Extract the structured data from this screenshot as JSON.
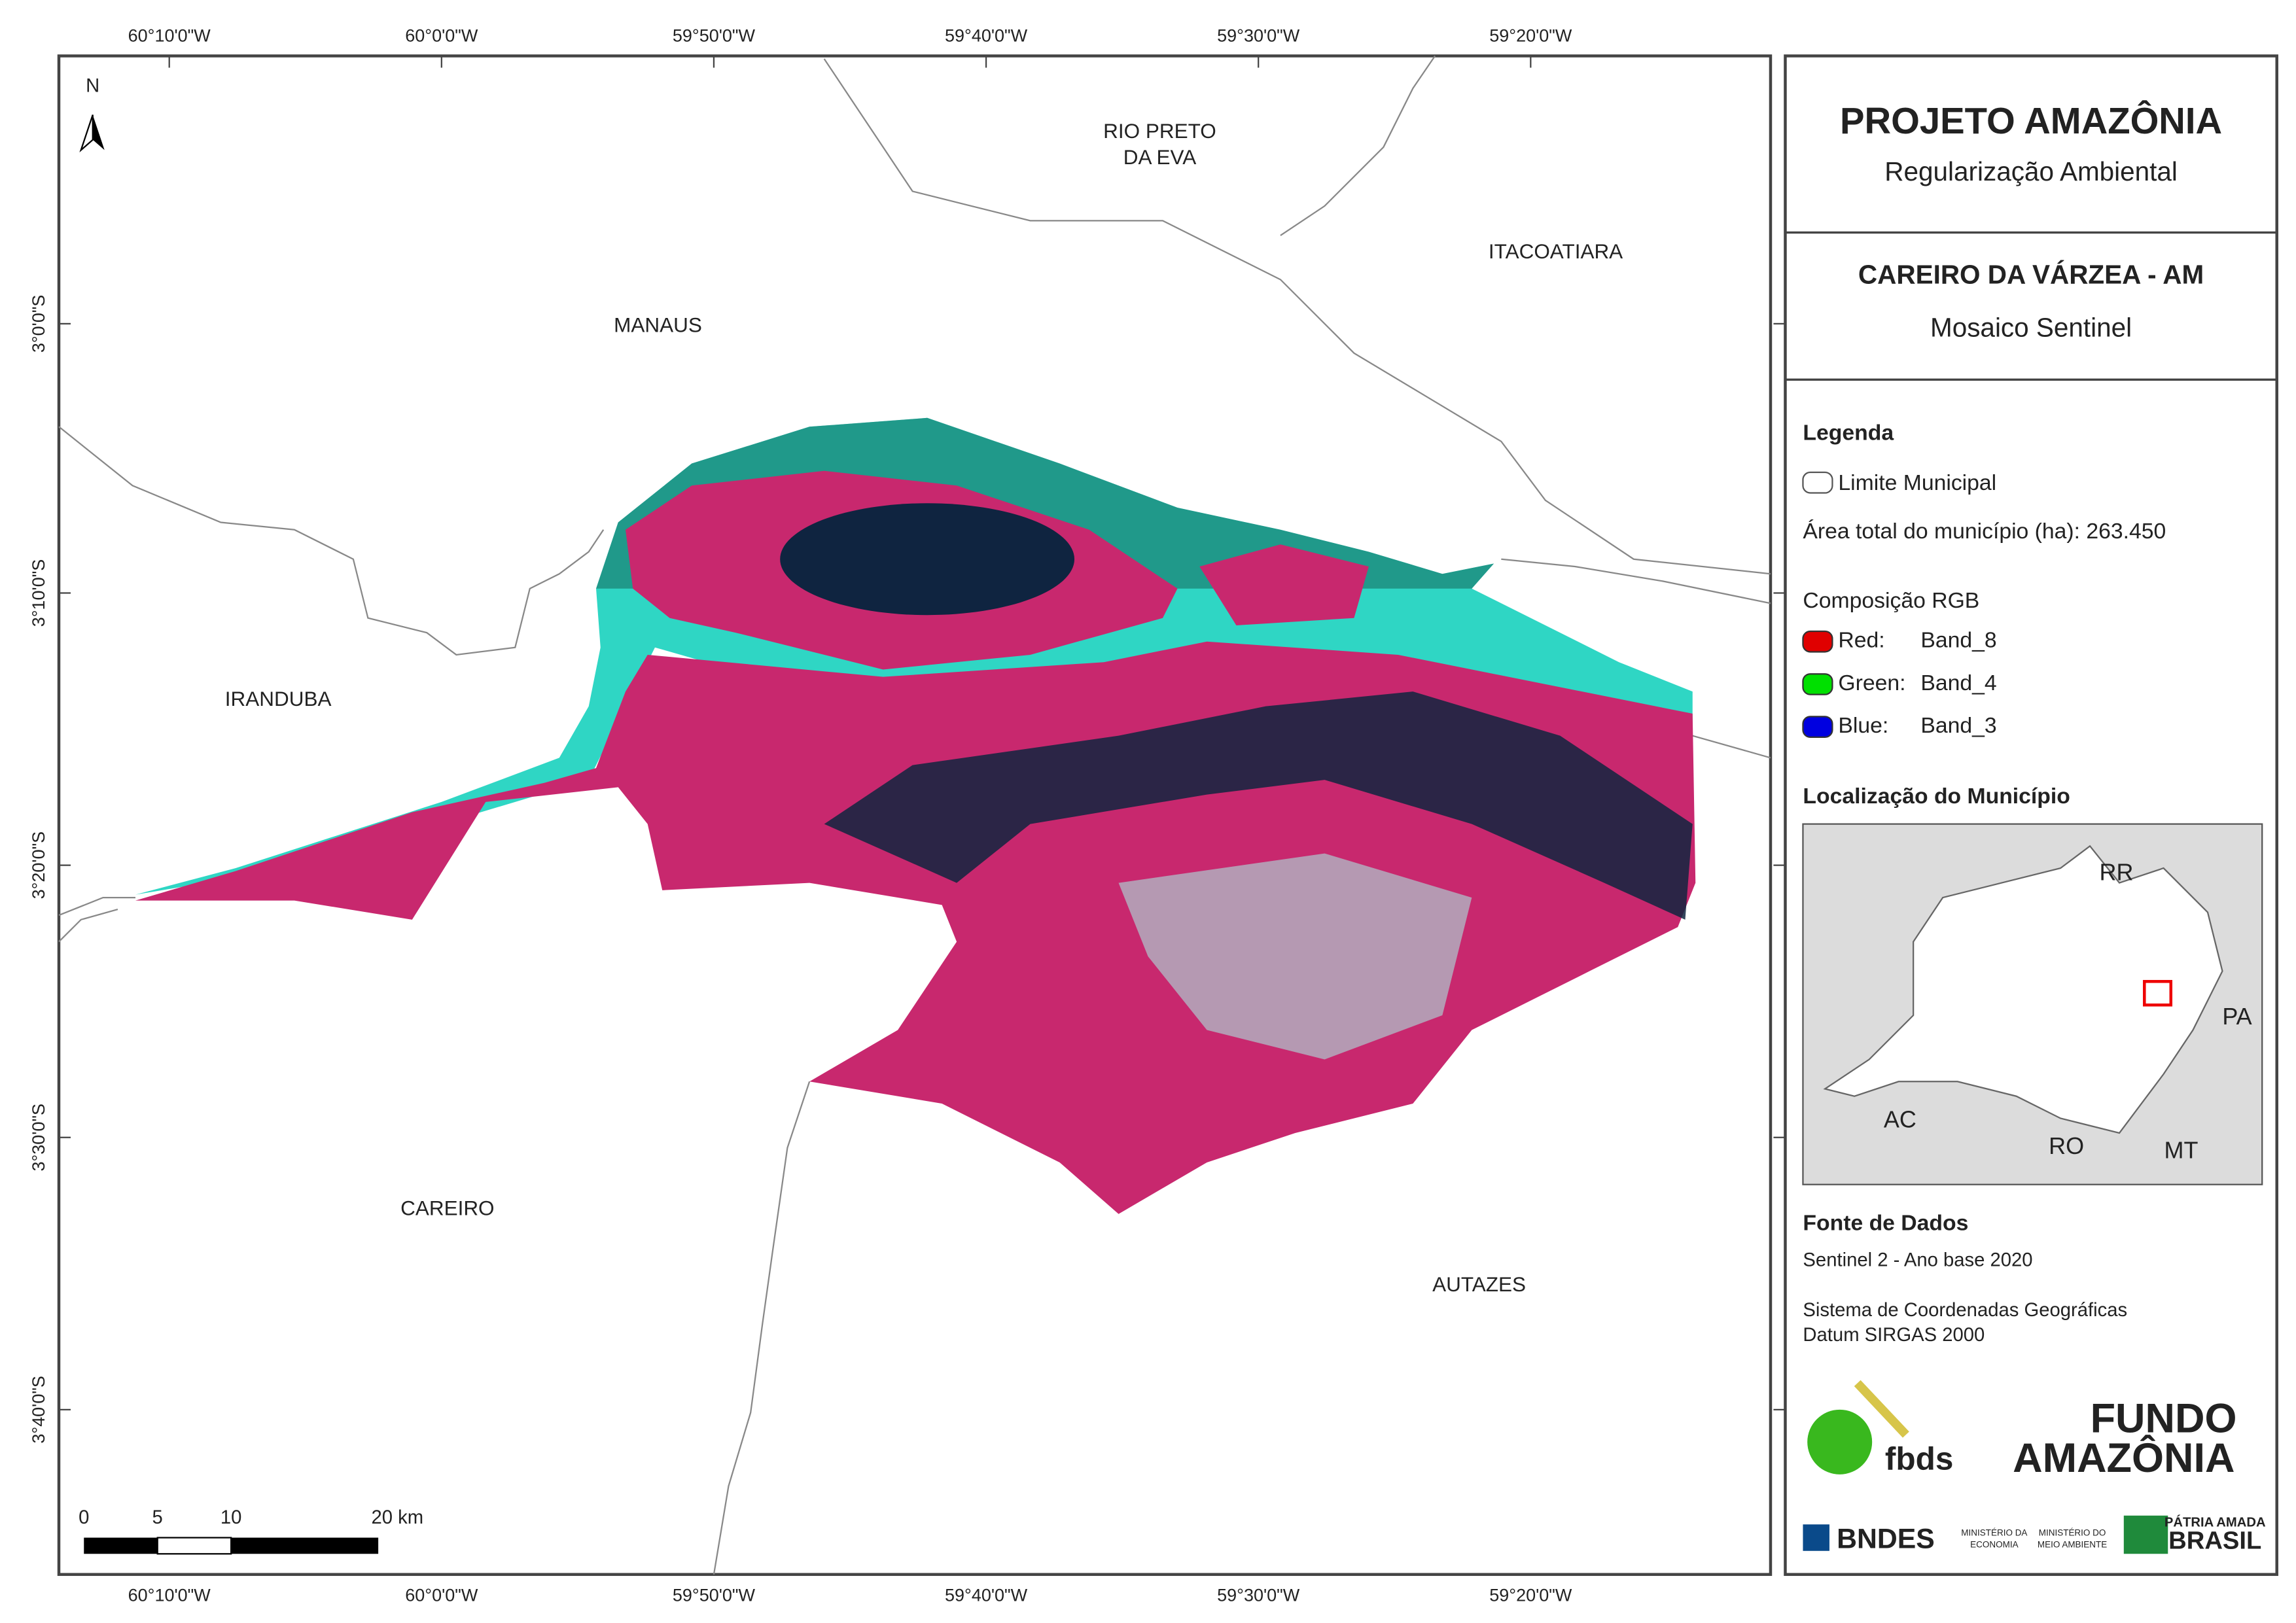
{
  "header": {
    "title": "PROJETO AMAZÔNIA",
    "subtitle": "Regularização Ambiental"
  },
  "map_title": {
    "title": "CAREIRO DA VÁRZEA - AM",
    "subtitle": "Mosaico Sentinel"
  },
  "legend": {
    "title": "Legenda",
    "boundary": "Limite Municipal",
    "area": "Área total do município (ha): 263.450",
    "rgb_title": "Composição RGB",
    "bands": [
      {
        "label": "Red:",
        "value": "Band_8",
        "color": "#e00000"
      },
      {
        "label": "Green:",
        "value": "Band_4",
        "color": "#00e000"
      },
      {
        "label": "Blue:",
        "value": "Band_3",
        "color": "#0000e0"
      }
    ]
  },
  "location": {
    "title": "Localização do Município",
    "labels": [
      "RR",
      "PA",
      "AC",
      "RO",
      "MT"
    ]
  },
  "sources": {
    "title": "Fonte de Dados",
    "lines": [
      "Sentinel 2 - Ano base 2020",
      "Sistema de Coordenadas Geográficas",
      "Datum SIRGAS 2000"
    ]
  },
  "logos": [
    "fbds",
    "FUNDO",
    "AMAZÔNIA",
    "BNDES",
    "MINISTÉRIO DA",
    "ECONOMIA",
    "MINISTÉRIO DO",
    "MEIO AMBIENTE",
    "PÁTRIA AMADA",
    "BRASIL"
  ],
  "map": {
    "north": "N",
    "places": [
      [
        "RIO PRETO",
        "DA EVA"
      ],
      [
        "ITACOATIARA"
      ],
      [
        "MANAUS"
      ],
      [
        "IRANDUBA"
      ],
      [
        "CAREIRO"
      ],
      [
        "AUTAZES"
      ]
    ],
    "longitudes": [
      "60°10'0\"W",
      "60°0'0\"W",
      "59°50'0\"W",
      "59°40'0\"W",
      "59°30'0\"W",
      "59°20'0\"W"
    ],
    "latitudes": [
      "3°0'0\"S",
      "3°10'0\"S",
      "3°20'0\"S",
      "3°30'0\"S",
      "3°40'0\"S"
    ],
    "scale": [
      "0",
      "5",
      "10",
      "20 km"
    ]
  }
}
